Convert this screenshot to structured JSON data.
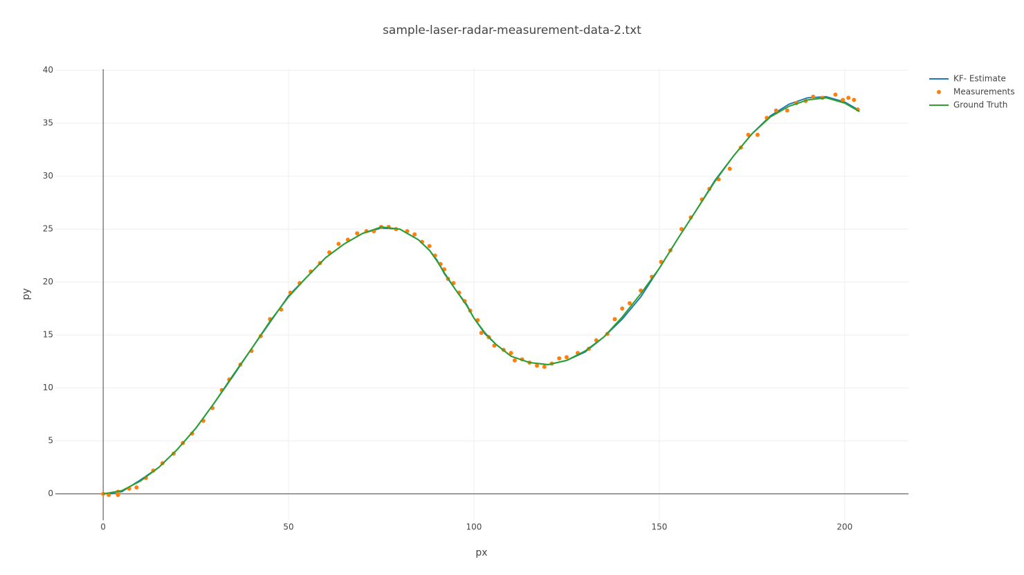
{
  "chart_data": {
    "type": "scatter",
    "title": "sample-laser-radar-measurement-data-2.txt",
    "x_label": "px",
    "y_label": "py",
    "xlim": [
      -12.9,
      217.2
    ],
    "ylim": [
      -2.5,
      40.1
    ],
    "xticks": [
      0,
      50,
      100,
      150,
      200
    ],
    "yticks": [
      0,
      5,
      10,
      15,
      20,
      25,
      30,
      35,
      40
    ],
    "grid": true,
    "zeroline": true,
    "legend": "right",
    "series": [
      {
        "name": "KF- Estimate",
        "color": "#1f77b4",
        "mode": "lines",
        "x": [
          0,
          5,
          10,
          15,
          20,
          25,
          30,
          35,
          40,
          45,
          50,
          55,
          60,
          65,
          70,
          75,
          80,
          85,
          88,
          90,
          92,
          95,
          98,
          100,
          103,
          106,
          110,
          115,
          120,
          125,
          130,
          135,
          140,
          145,
          150,
          155,
          160,
          165,
          170,
          175,
          180,
          185,
          190,
          195,
          200,
          204
        ],
        "y": [
          0,
          0.2,
          1.3,
          2.5,
          4.2,
          6.2,
          8.6,
          11.1,
          13.7,
          16.2,
          18.7,
          20.5,
          22.3,
          23.6,
          24.6,
          25.1,
          25.0,
          24.0,
          23.0,
          22.1,
          20.8,
          19.3,
          17.9,
          16.6,
          15.1,
          14.1,
          13.0,
          12.4,
          12.2,
          12.6,
          13.4,
          14.8,
          16.5,
          18.6,
          21.3,
          24.1,
          26.8,
          29.6,
          31.9,
          34.0,
          35.7,
          36.8,
          37.4,
          37.5,
          37.0,
          36.2
        ]
      },
      {
        "name": "Measurements",
        "color": "#ff7f0e",
        "mode": "markers",
        "x": [
          0,
          1.5,
          4,
          4,
          7,
          9,
          11.5,
          13.5,
          16,
          19,
          21.5,
          24,
          27,
          29.5,
          32,
          34,
          37,
          40,
          42.5,
          45,
          48,
          50.5,
          53,
          56,
          58.5,
          61,
          63.5,
          66,
          68.5,
          71,
          73,
          75,
          77,
          79,
          82,
          84,
          86,
          88,
          89.5,
          91,
          92,
          93,
          94.5,
          96,
          97.5,
          99,
          101,
          102,
          104,
          105.5,
          108,
          110,
          111,
          113,
          115,
          117,
          119,
          121,
          123,
          125,
          128,
          131,
          133,
          136,
          138,
          140,
          142,
          145,
          148,
          150.5,
          153,
          156,
          158.5,
          161.5,
          163.5,
          166,
          169,
          172,
          174,
          176.5,
          179,
          181.5,
          184.5,
          187,
          189.5,
          191.5,
          194,
          197.5,
          199.5,
          201,
          202.5,
          203.5
        ],
        "y": [
          0,
          -0.1,
          -0.1,
          0.2,
          0.5,
          0.6,
          1.5,
          2.2,
          2.9,
          3.8,
          4.8,
          5.7,
          6.9,
          8.1,
          9.8,
          10.8,
          12.2,
          13.5,
          14.9,
          16.5,
          17.4,
          19.0,
          19.9,
          21.0,
          21.8,
          22.8,
          23.6,
          24.0,
          24.6,
          24.8,
          24.8,
          25.2,
          25.2,
          25.0,
          24.8,
          24.5,
          23.8,
          23.4,
          22.5,
          21.7,
          21.2,
          20.3,
          19.9,
          19.0,
          18.2,
          17.3,
          16.4,
          15.2,
          14.8,
          14.0,
          13.6,
          13.3,
          12.6,
          12.7,
          12.4,
          12.1,
          12.0,
          12.3,
          12.8,
          12.9,
          13.3,
          13.7,
          14.5,
          15.1,
          16.5,
          17.5,
          18.0,
          19.2,
          20.5,
          21.9,
          23.0,
          25.0,
          26.1,
          27.8,
          28.8,
          29.7,
          30.7,
          32.7,
          33.9,
          33.9,
          35.5,
          36.2,
          36.2,
          36.9,
          37.1,
          37.5,
          37.4,
          37.7,
          37.2,
          37.4,
          37.2,
          36.3
        ]
      },
      {
        "name": "Ground Truth",
        "color": "#2ca02c",
        "mode": "lines",
        "x": [
          0,
          5,
          10,
          15,
          20,
          25,
          30,
          35,
          40,
          45,
          50,
          55,
          60,
          65,
          70,
          75,
          80,
          85,
          88,
          90,
          92,
          95,
          98,
          100,
          103,
          106,
          110,
          115,
          120,
          125,
          130,
          135,
          140,
          145,
          150,
          155,
          160,
          165,
          170,
          175,
          180,
          185,
          190,
          195,
          200,
          204
        ],
        "y": [
          0,
          0.3,
          1.2,
          2.5,
          4.2,
          6.2,
          8.6,
          11.2,
          13.7,
          16.3,
          18.6,
          20.5,
          22.3,
          23.6,
          24.6,
          25.2,
          25.0,
          24.0,
          23.0,
          22.0,
          20.9,
          19.3,
          17.8,
          16.6,
          15.2,
          14.1,
          13.0,
          12.4,
          12.2,
          12.6,
          13.5,
          14.8,
          16.7,
          18.9,
          21.3,
          24.1,
          26.8,
          29.5,
          31.9,
          34.0,
          35.6,
          36.6,
          37.2,
          37.4,
          36.9,
          36.1
        ]
      }
    ]
  }
}
